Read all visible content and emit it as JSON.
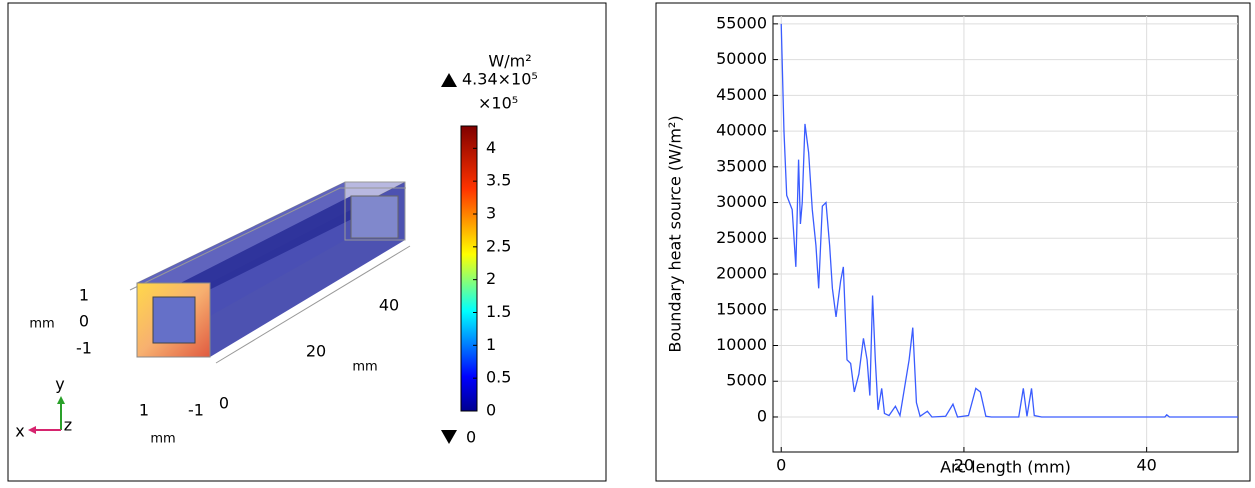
{
  "chart_data": [
    {
      "type": "surface3d",
      "colorbar": {
        "unit": "W/m²",
        "max": {
          "value": 4.34,
          "label": "4.34×10⁵"
        },
        "multiplier": "×10⁵",
        "min": 0,
        "ticks": [
          0,
          0.5,
          1,
          1.5,
          2,
          2.5,
          3,
          3.5,
          4
        ]
      },
      "axes3d": [
        {
          "ticks": [
            1,
            0,
            -1
          ],
          "unit": "mm"
        },
        {
          "ticks": [
            40,
            20
          ],
          "unit": "mm"
        },
        {
          "ticks": [
            1,
            -1,
            0
          ],
          "unit": "mm"
        }
      ],
      "triad": [
        "x",
        "y",
        "z"
      ]
    },
    {
      "type": "line",
      "ylabel": "Boundary heat source (W/m²)",
      "xlabel": "Arc length (mm)",
      "xlim": [
        -0.9,
        50
      ],
      "ylim": [
        -4900,
        56100
      ],
      "xticks": [
        0,
        20,
        40
      ],
      "yticks": [
        0,
        5000,
        10000,
        15000,
        20000,
        25000,
        30000,
        35000,
        40000,
        45000,
        50000,
        55000
      ],
      "grid": true,
      "series": [
        {
          "color": "#3a5cff",
          "x": [
            0,
            0.3,
            0.6,
            1.2,
            1.6,
            1.9,
            2.1,
            2.3,
            2.6,
            3.0,
            3.4,
            3.8,
            4.1,
            4.5,
            4.9,
            5.3,
            5.6,
            6.0,
            6.5,
            6.8,
            7.2,
            7.6,
            8.0,
            8.5,
            9.0,
            9.4,
            9.7,
            10.0,
            10.3,
            10.6,
            11.0,
            11.3,
            11.8,
            12.5,
            13.0,
            14.0,
            14.4,
            14.8,
            15.2,
            16,
            16.5,
            18,
            18.8,
            19.3,
            20.5,
            21.3,
            21.8,
            22.4,
            23,
            26,
            26.5,
            26.9,
            27.4,
            27.7,
            28.5,
            42,
            42.2,
            42.5,
            50
          ],
          "values": [
            55000,
            40000,
            31000,
            29000,
            21000,
            36000,
            27000,
            30000,
            41000,
            37000,
            29000,
            24000,
            18000,
            29500,
            30000,
            24000,
            18000,
            14000,
            19000,
            21000,
            8000,
            7500,
            3500,
            6000,
            11000,
            8000,
            3000,
            17000,
            8000,
            1000,
            4000,
            500,
            200,
            1500,
            200,
            8000,
            12500,
            2000,
            100,
            800,
            0,
            100,
            1800,
            0,
            200,
            4000,
            3500,
            100,
            0,
            0,
            4000,
            100,
            4000,
            200,
            0,
            0,
            300,
            0,
            0
          ]
        }
      ]
    }
  ]
}
